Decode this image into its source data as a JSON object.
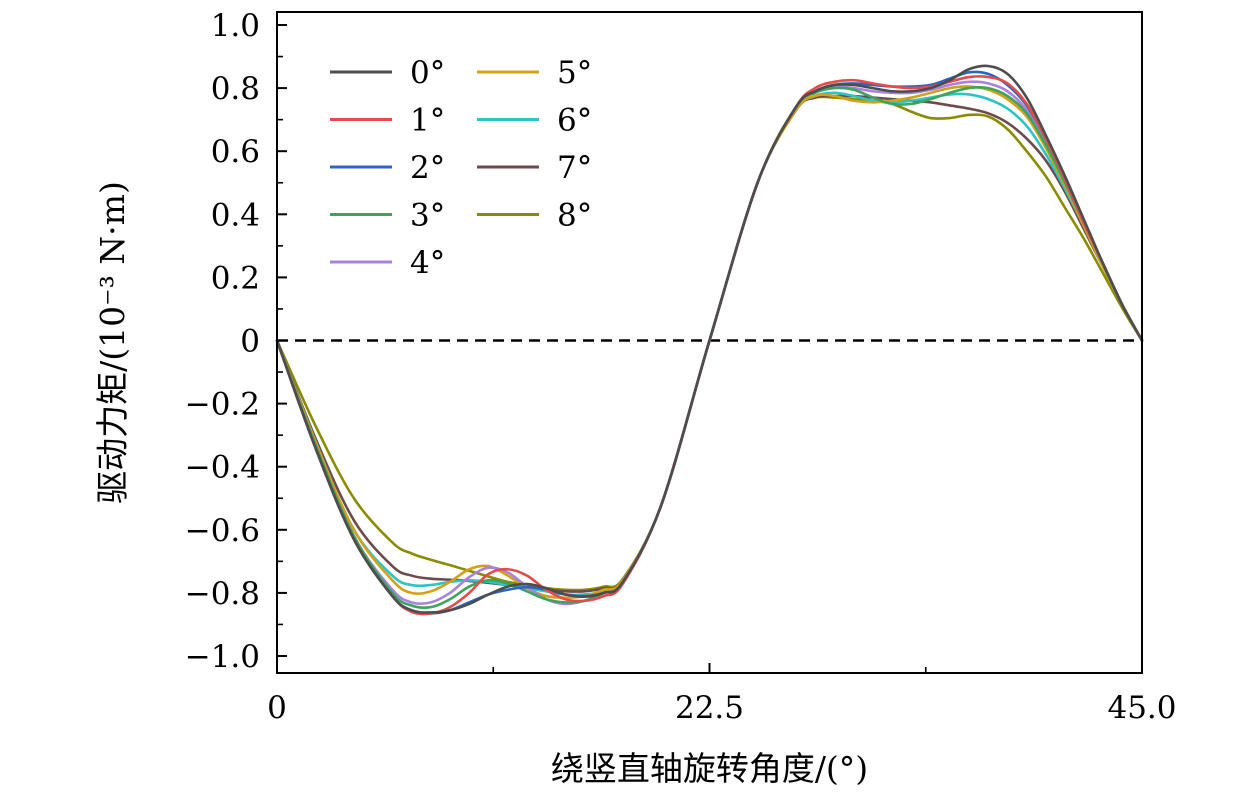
{
  "chart_data": {
    "type": "line",
    "xlabel": "绕竖直轴旋转角度/(°)",
    "ylabel": "驱动力矩/(10⁻³ N·m)",
    "xlim": [
      0,
      45.0
    ],
    "ylim": [
      -1.05,
      1.05
    ],
    "x_ticks": [
      {
        "value": 0,
        "label": "0"
      },
      {
        "value": 22.5,
        "label": "22.5"
      },
      {
        "value": 45.0,
        "label": "45.0"
      }
    ],
    "x_minor_ticks": [
      11.25,
      33.75
    ],
    "y_ticks": [
      {
        "value": 1.0,
        "label": "1.0"
      },
      {
        "value": 0.8,
        "label": "0.8"
      },
      {
        "value": 0.6,
        "label": "0.6"
      },
      {
        "value": 0.4,
        "label": "0.4"
      },
      {
        "value": 0.2,
        "label": "0.2"
      },
      {
        "value": 0,
        "label": "0"
      },
      {
        "value": -0.2,
        "label": "−0.2"
      },
      {
        "value": -0.4,
        "label": "−0.4"
      },
      {
        "value": -0.6,
        "label": "−0.6"
      },
      {
        "value": -0.8,
        "label": "−0.8"
      },
      {
        "value": -1.0,
        "label": "−1.0"
      }
    ],
    "y_minor_ticks": [
      0.9,
      0.7,
      0.5,
      0.3,
      0.1,
      -0.1,
      -0.3,
      -0.5,
      -0.7,
      -0.9
    ],
    "reference_line": {
      "y": 0,
      "style": "dashed"
    },
    "legend": {
      "position": "top-left",
      "columns": 2
    },
    "series": [
      {
        "name": "0°",
        "color": "#4d4d4d",
        "x": [
          0,
          2,
          4,
          6,
          7,
          8,
          9,
          10,
          11,
          12,
          13,
          14,
          15,
          16,
          17,
          18,
          20,
          22.5,
          25,
          27,
          28,
          29,
          30,
          31,
          32,
          33,
          34,
          35,
          36,
          37,
          38,
          39,
          40,
          41,
          42,
          43,
          44,
          45
        ],
        "y": [
          0,
          -0.34,
          -0.63,
          -0.81,
          -0.855,
          -0.862,
          -0.855,
          -0.835,
          -0.805,
          -0.78,
          -0.772,
          -0.785,
          -0.805,
          -0.812,
          -0.8,
          -0.765,
          -0.52,
          0,
          0.5,
          0.74,
          0.79,
          0.81,
          0.81,
          0.8,
          0.79,
          0.79,
          0.8,
          0.825,
          0.86,
          0.87,
          0.845,
          0.77,
          0.65,
          0.52,
          0.38,
          0.24,
          0.11,
          0
        ]
      },
      {
        "name": "1°",
        "color": "#e64b4b",
        "x": [
          0,
          2,
          4,
          6,
          7,
          8,
          9,
          10,
          11,
          12,
          13,
          14,
          15,
          16,
          17,
          18,
          20,
          22.5,
          25,
          27,
          28,
          29,
          30,
          31,
          32,
          33,
          34,
          35,
          36,
          37,
          38,
          39,
          40,
          41,
          42,
          43,
          44,
          45
        ],
        "y": [
          0,
          -0.34,
          -0.63,
          -0.81,
          -0.86,
          -0.865,
          -0.845,
          -0.8,
          -0.74,
          -0.725,
          -0.745,
          -0.79,
          -0.82,
          -0.825,
          -0.81,
          -0.77,
          -0.52,
          0,
          0.5,
          0.74,
          0.8,
          0.82,
          0.825,
          0.815,
          0.805,
          0.8,
          0.805,
          0.82,
          0.835,
          0.835,
          0.815,
          0.75,
          0.64,
          0.51,
          0.37,
          0.24,
          0.11,
          0
        ]
      },
      {
        "name": "2°",
        "color": "#2b66c4",
        "x": [
          0,
          2,
          4,
          6,
          7,
          8,
          9,
          10,
          11,
          12,
          13,
          14,
          15,
          16,
          17,
          18,
          20,
          22.5,
          25,
          27,
          28,
          29,
          30,
          31,
          32,
          33,
          34,
          35,
          36,
          37,
          38,
          39,
          40,
          41,
          42,
          43,
          44,
          45
        ],
        "y": [
          0,
          -0.34,
          -0.63,
          -0.81,
          -0.855,
          -0.865,
          -0.855,
          -0.83,
          -0.805,
          -0.79,
          -0.782,
          -0.79,
          -0.805,
          -0.81,
          -0.8,
          -0.765,
          -0.52,
          0,
          0.5,
          0.74,
          0.79,
          0.81,
          0.815,
          0.81,
          0.805,
          0.805,
          0.81,
          0.83,
          0.85,
          0.845,
          0.81,
          0.745,
          0.64,
          0.51,
          0.37,
          0.24,
          0.11,
          0
        ]
      },
      {
        "name": "3°",
        "color": "#3aa55b",
        "x": [
          0,
          2,
          4,
          6,
          7,
          8,
          9,
          10,
          11,
          12,
          13,
          14,
          15,
          16,
          17,
          18,
          20,
          22.5,
          25,
          27,
          28,
          29,
          30,
          31,
          32,
          33,
          34,
          35,
          36,
          37,
          38,
          39,
          40,
          41,
          42,
          43,
          44,
          45
        ],
        "y": [
          0,
          -0.33,
          -0.62,
          -0.8,
          -0.84,
          -0.845,
          -0.82,
          -0.78,
          -0.76,
          -0.77,
          -0.795,
          -0.82,
          -0.83,
          -0.825,
          -0.8,
          -0.765,
          -0.52,
          0,
          0.5,
          0.74,
          0.785,
          0.8,
          0.795,
          0.77,
          0.75,
          0.75,
          0.765,
          0.785,
          0.8,
          0.8,
          0.775,
          0.72,
          0.62,
          0.5,
          0.37,
          0.24,
          0.11,
          0
        ]
      },
      {
        "name": "4°",
        "color": "#a882dc",
        "x": [
          0,
          2,
          4,
          6,
          7,
          8,
          9,
          10,
          11,
          12,
          13,
          14,
          15,
          16,
          17,
          18,
          20,
          22.5,
          25,
          27,
          28,
          29,
          30,
          31,
          32,
          33,
          34,
          35,
          36,
          37,
          38,
          39,
          40,
          41,
          42,
          43,
          44,
          45
        ],
        "y": [
          0,
          -0.33,
          -0.62,
          -0.79,
          -0.83,
          -0.83,
          -0.8,
          -0.75,
          -0.72,
          -0.735,
          -0.78,
          -0.82,
          -0.835,
          -0.825,
          -0.8,
          -0.765,
          -0.52,
          0,
          0.5,
          0.74,
          0.79,
          0.805,
          0.8,
          0.79,
          0.785,
          0.785,
          0.795,
          0.81,
          0.82,
          0.815,
          0.79,
          0.73,
          0.625,
          0.5,
          0.37,
          0.24,
          0.11,
          0
        ]
      },
      {
        "name": "5°",
        "color": "#d4a017",
        "x": [
          0,
          2,
          4,
          6,
          7,
          8,
          9,
          10,
          11,
          12,
          13,
          14,
          15,
          16,
          17,
          18,
          20,
          22.5,
          25,
          27,
          28,
          29,
          30,
          31,
          32,
          33,
          34,
          35,
          36,
          37,
          38,
          39,
          40,
          41,
          42,
          43,
          44,
          45
        ],
        "y": [
          0,
          -0.32,
          -0.6,
          -0.76,
          -0.8,
          -0.795,
          -0.765,
          -0.725,
          -0.715,
          -0.745,
          -0.785,
          -0.81,
          -0.815,
          -0.81,
          -0.79,
          -0.76,
          -0.52,
          0,
          0.5,
          0.73,
          0.775,
          0.775,
          0.76,
          0.755,
          0.76,
          0.77,
          0.785,
          0.8,
          0.805,
          0.795,
          0.765,
          0.71,
          0.61,
          0.49,
          0.36,
          0.23,
          0.11,
          0
        ]
      },
      {
        "name": "6°",
        "color": "#2cc4c4",
        "x": [
          0,
          2,
          4,
          6,
          7,
          8,
          9,
          10,
          11,
          12,
          13,
          14,
          15,
          16,
          17,
          18,
          20,
          22.5,
          25,
          27,
          28,
          29,
          30,
          31,
          32,
          33,
          34,
          35,
          36,
          37,
          38,
          39,
          40,
          41,
          42,
          43,
          44,
          45
        ],
        "y": [
          0,
          -0.32,
          -0.6,
          -0.745,
          -0.775,
          -0.775,
          -0.765,
          -0.76,
          -0.765,
          -0.775,
          -0.785,
          -0.795,
          -0.805,
          -0.805,
          -0.795,
          -0.765,
          -0.52,
          0,
          0.5,
          0.73,
          0.775,
          0.785,
          0.775,
          0.76,
          0.755,
          0.76,
          0.77,
          0.78,
          0.78,
          0.765,
          0.735,
          0.68,
          0.59,
          0.48,
          0.36,
          0.23,
          0.11,
          0
        ]
      },
      {
        "name": "7°",
        "color": "#6e4a4a",
        "x": [
          0,
          2,
          4,
          6,
          7,
          8,
          9,
          10,
          11,
          12,
          13,
          14,
          15,
          16,
          17,
          18,
          20,
          22.5,
          25,
          27,
          28,
          29,
          30,
          31,
          32,
          33,
          34,
          35,
          36,
          37,
          38,
          39,
          40,
          41,
          42,
          43,
          44,
          45
        ],
        "y": [
          0,
          -0.31,
          -0.57,
          -0.715,
          -0.745,
          -0.755,
          -0.758,
          -0.762,
          -0.768,
          -0.775,
          -0.782,
          -0.79,
          -0.795,
          -0.795,
          -0.785,
          -0.76,
          -0.52,
          0,
          0.5,
          0.73,
          0.77,
          0.775,
          0.775,
          0.77,
          0.765,
          0.76,
          0.755,
          0.745,
          0.735,
          0.72,
          0.69,
          0.64,
          0.57,
          0.47,
          0.35,
          0.23,
          0.11,
          0
        ]
      },
      {
        "name": "8°",
        "color": "#8b8b00",
        "x": [
          0,
          2,
          4,
          6,
          7,
          8,
          9,
          10,
          11,
          12,
          13,
          14,
          15,
          16,
          17,
          18,
          20,
          22.5,
          25,
          27,
          28,
          29,
          30,
          31,
          32,
          33,
          34,
          35,
          36,
          37,
          38,
          39,
          40,
          41,
          42,
          43,
          44,
          45
        ],
        "y": [
          0,
          -0.27,
          -0.5,
          -0.64,
          -0.675,
          -0.695,
          -0.712,
          -0.73,
          -0.748,
          -0.765,
          -0.775,
          -0.785,
          -0.79,
          -0.79,
          -0.78,
          -0.755,
          -0.52,
          0,
          0.5,
          0.74,
          0.77,
          0.77,
          0.765,
          0.76,
          0.75,
          0.725,
          0.705,
          0.705,
          0.715,
          0.71,
          0.67,
          0.6,
          0.52,
          0.42,
          0.32,
          0.21,
          0.1,
          0
        ]
      }
    ]
  }
}
